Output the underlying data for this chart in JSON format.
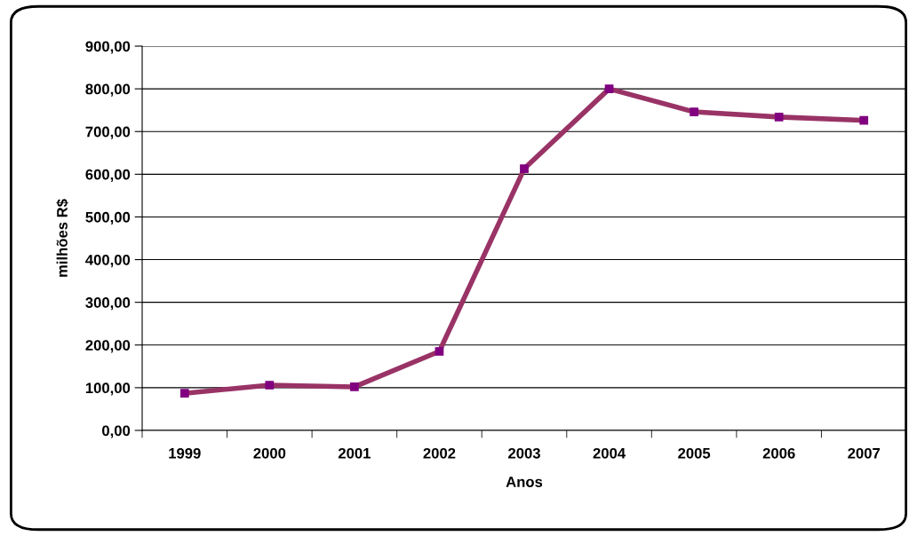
{
  "chart_data": {
    "type": "line",
    "xlabel": "Anos",
    "ylabel": "milhões R$",
    "categories": [
      "1999",
      "2000",
      "2001",
      "2002",
      "2003",
      "2004",
      "2005",
      "2006",
      "2007"
    ],
    "series": [
      {
        "color": "#993366",
        "values": [
          87,
          106,
          102,
          185,
          613,
          800,
          746,
          734,
          726
        ]
      }
    ],
    "ylim": [
      0,
      900
    ],
    "yticks": [
      {
        "value": 0,
        "label": "0,00"
      },
      {
        "value": 100,
        "label": "100,00"
      },
      {
        "value": 200,
        "label": "200,00"
      },
      {
        "value": 300,
        "label": "300,00"
      },
      {
        "value": 400,
        "label": "400,00"
      },
      {
        "value": 500,
        "label": "500,00"
      },
      {
        "value": 600,
        "label": "600,00"
      },
      {
        "value": 700,
        "label": "700,00"
      },
      {
        "value": 800,
        "label": "800,00"
      },
      {
        "value": 900,
        "label": "900,00"
      }
    ],
    "grid": "y",
    "marker": "square",
    "line_style": "solid"
  }
}
